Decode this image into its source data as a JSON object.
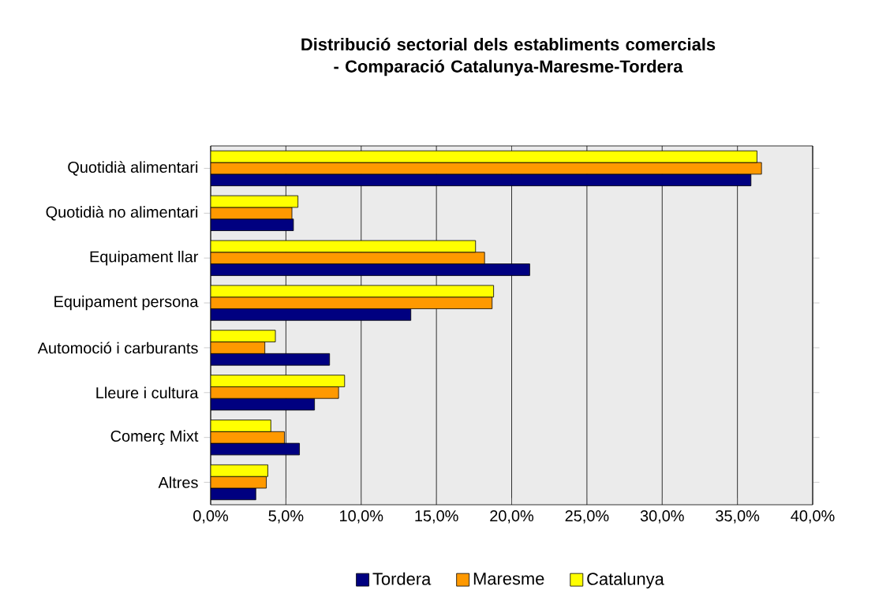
{
  "chart_data": {
    "type": "bar",
    "orientation": "horizontal",
    "title": "Distribució sectorial dels establiments comercials - Comparació Catalunya-Maresme-Tordera",
    "categories": [
      "Quotidià alimentari",
      "Quotidià no alimentari",
      "Equipament llar",
      "Equipament persona",
      "Automoció i carburants",
      "Lleure i cultura",
      "Comerç Mixt",
      "Altres"
    ],
    "series": [
      {
        "name": "Tordera",
        "color": "#000080",
        "values": [
          35.9,
          5.5,
          21.2,
          13.3,
          7.9,
          6.9,
          5.9,
          3.0
        ]
      },
      {
        "name": "Maresme",
        "color": "#ff9900",
        "values": [
          36.6,
          5.4,
          18.2,
          18.7,
          3.6,
          8.5,
          4.9,
          3.7
        ]
      },
      {
        "name": "Catalunya",
        "color": "#ffff00",
        "values": [
          36.3,
          5.8,
          17.6,
          18.8,
          4.3,
          8.9,
          4.0,
          3.8
        ]
      }
    ],
    "xlim": [
      0,
      40
    ],
    "xticks": [
      {
        "value": 0,
        "label": "0,0%"
      },
      {
        "value": 5,
        "label": "5,0%"
      },
      {
        "value": 10,
        "label": "10,0%"
      },
      {
        "value": 15,
        "label": "15,0%"
      },
      {
        "value": 20,
        "label": "20,0%"
      },
      {
        "value": 25,
        "label": "25,0%"
      },
      {
        "value": 30,
        "label": "30,0%"
      },
      {
        "value": 35,
        "label": "35,0%"
      },
      {
        "value": 40,
        "label": "40,0%"
      }
    ],
    "grid": "x",
    "legend": "bottom"
  }
}
